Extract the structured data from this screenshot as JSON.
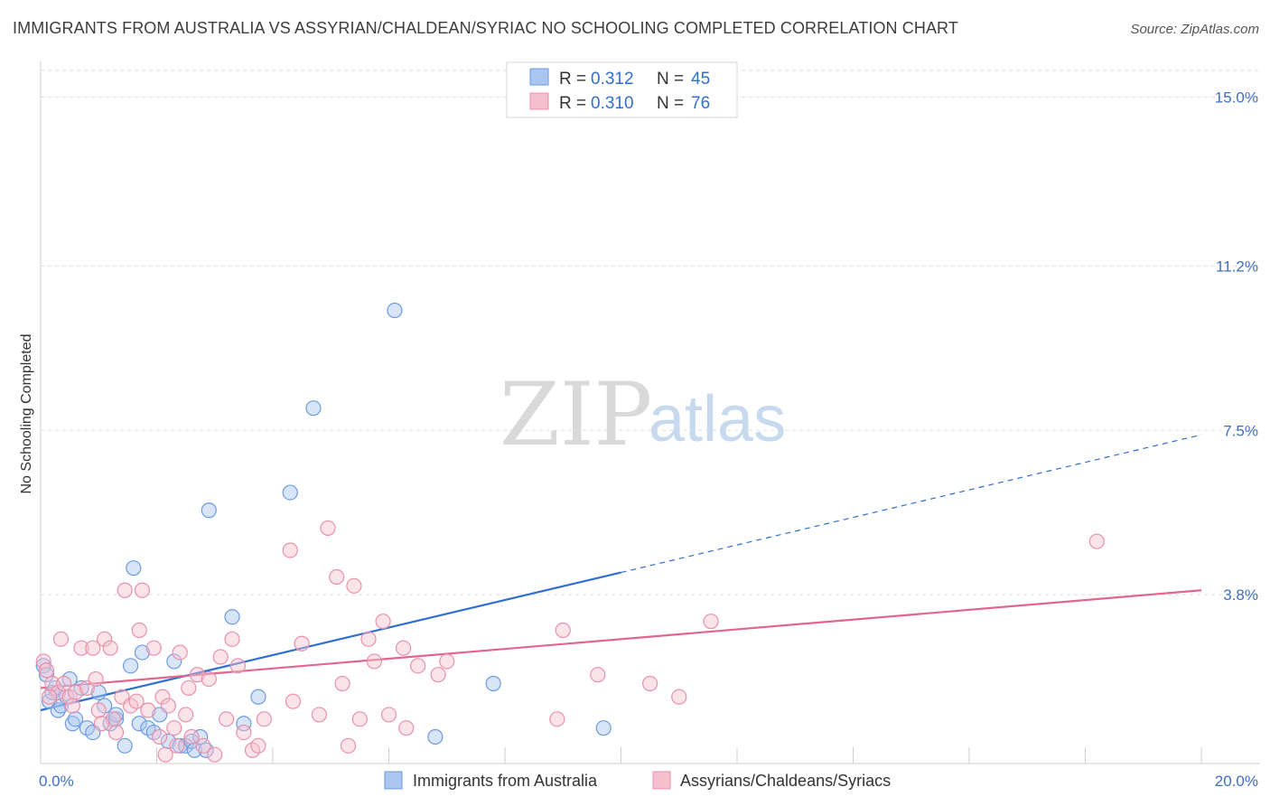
{
  "title": "IMMIGRANTS FROM AUSTRALIA VS ASSYRIAN/CHALDEAN/SYRIAC NO SCHOOLING COMPLETED CORRELATION CHART",
  "source": "Source: ZipAtlas.com",
  "watermark": {
    "part1": "ZIP",
    "part2": "atlas"
  },
  "colors": {
    "blue_fill": "#a9c6f0",
    "blue_stroke": "#6d9be0",
    "blue_line": "#2f6fd1",
    "pink_fill": "#f6c0d0",
    "pink_stroke": "#e890aa",
    "pink_line": "#e0668f",
    "grid": "#dddddd",
    "tick": "#3f6fc4"
  },
  "legend": {
    "rows": [
      {
        "r_label": "R =",
        "r_value": "0.312",
        "n_label": "N =",
        "n_value": "45"
      },
      {
        "r_label": "R =",
        "r_value": "0.310",
        "n_label": "N =",
        "n_value": "76"
      }
    ]
  },
  "chart_data": {
    "type": "scatter",
    "ylabel": "No Schooling Completed",
    "xlim": [
      0,
      20
    ],
    "ylim": [
      0,
      15.6
    ],
    "y_ticks": [
      {
        "value": 15.0,
        "label": "15.0%"
      },
      {
        "value": 11.2,
        "label": "11.2%"
      },
      {
        "value": 7.5,
        "label": "7.5%"
      },
      {
        "value": 3.8,
        "label": "3.8%"
      }
    ],
    "x_ticks": [
      {
        "value": 0,
        "label": "0.0%"
      },
      {
        "value": 20,
        "label": "20.0%"
      }
    ],
    "series": [
      {
        "name": "Immigrants from Australia",
        "color": "blue",
        "trend": {
          "x0": 0,
          "y0": 1.2,
          "x1": 10,
          "y1": 4.3,
          "dash_to_x": 20,
          "dash_to_y": 7.4
        },
        "points": [
          [
            0.05,
            2.2
          ],
          [
            0.1,
            2.0
          ],
          [
            0.15,
            1.4
          ],
          [
            0.2,
            1.6
          ],
          [
            0.3,
            1.2
          ],
          [
            0.35,
            1.3
          ],
          [
            0.45,
            1.5
          ],
          [
            0.5,
            1.9
          ],
          [
            0.55,
            0.9
          ],
          [
            0.6,
            1.0
          ],
          [
            0.7,
            1.7
          ],
          [
            0.8,
            0.8
          ],
          [
            0.9,
            0.7
          ],
          [
            1.0,
            1.6
          ],
          [
            1.1,
            1.3
          ],
          [
            1.2,
            0.9
          ],
          [
            1.3,
            1.0
          ],
          [
            1.45,
            0.4
          ],
          [
            1.55,
            2.2
          ],
          [
            1.6,
            4.4
          ],
          [
            1.7,
            0.9
          ],
          [
            1.75,
            2.5
          ],
          [
            1.85,
            0.8
          ],
          [
            1.95,
            0.7
          ],
          [
            2.05,
            1.1
          ],
          [
            2.2,
            0.5
          ],
          [
            2.3,
            2.3
          ],
          [
            2.4,
            0.4
          ],
          [
            2.5,
            0.4
          ],
          [
            2.6,
            0.5
          ],
          [
            2.65,
            0.3
          ],
          [
            2.75,
            0.6
          ],
          [
            2.85,
            0.3
          ],
          [
            2.9,
            5.7
          ],
          [
            3.3,
            3.3
          ],
          [
            3.5,
            0.9
          ],
          [
            3.75,
            1.5
          ],
          [
            4.3,
            6.1
          ],
          [
            4.7,
            8.0
          ],
          [
            6.1,
            10.2
          ],
          [
            6.8,
            0.6
          ],
          [
            7.8,
            1.8
          ],
          [
            9.7,
            0.8
          ],
          [
            0.25,
            1.7
          ],
          [
            1.3,
            1.1
          ]
        ]
      },
      {
        "name": "Assyrians/Chaldeans/Syriacs",
        "color": "pink",
        "trend": {
          "x0": 0,
          "y0": 1.7,
          "x1": 20,
          "y1": 3.9
        },
        "points": [
          [
            0.05,
            2.3
          ],
          [
            0.1,
            2.1
          ],
          [
            0.2,
            1.8
          ],
          [
            0.3,
            1.6
          ],
          [
            0.35,
            2.8
          ],
          [
            0.4,
            1.8
          ],
          [
            0.5,
            1.5
          ],
          [
            0.6,
            1.6
          ],
          [
            0.7,
            2.6
          ],
          [
            0.8,
            1.7
          ],
          [
            0.9,
            2.6
          ],
          [
            0.95,
            1.9
          ],
          [
            1.0,
            1.2
          ],
          [
            1.1,
            2.8
          ],
          [
            1.2,
            2.6
          ],
          [
            1.25,
            1.0
          ],
          [
            1.3,
            0.7
          ],
          [
            1.4,
            1.5
          ],
          [
            1.45,
            3.9
          ],
          [
            1.55,
            1.3
          ],
          [
            1.65,
            1.4
          ],
          [
            1.7,
            3.0
          ],
          [
            1.75,
            3.9
          ],
          [
            1.85,
            1.2
          ],
          [
            1.95,
            2.6
          ],
          [
            2.05,
            0.6
          ],
          [
            2.1,
            1.5
          ],
          [
            2.15,
            0.2
          ],
          [
            2.2,
            1.3
          ],
          [
            2.3,
            0.8
          ],
          [
            2.35,
            0.4
          ],
          [
            2.4,
            2.5
          ],
          [
            2.5,
            1.1
          ],
          [
            2.6,
            0.6
          ],
          [
            2.7,
            2.0
          ],
          [
            2.8,
            0.4
          ],
          [
            2.9,
            1.9
          ],
          [
            3.0,
            0.2
          ],
          [
            3.1,
            2.4
          ],
          [
            3.2,
            1.0
          ],
          [
            3.3,
            2.8
          ],
          [
            3.4,
            2.2
          ],
          [
            3.5,
            0.7
          ],
          [
            3.65,
            0.3
          ],
          [
            3.75,
            0.4
          ],
          [
            3.85,
            1.0
          ],
          [
            4.3,
            4.8
          ],
          [
            4.35,
            1.4
          ],
          [
            4.5,
            2.7
          ],
          [
            4.8,
            1.1
          ],
          [
            4.95,
            5.3
          ],
          [
            5.1,
            4.2
          ],
          [
            5.2,
            1.8
          ],
          [
            5.3,
            0.4
          ],
          [
            5.4,
            4.0
          ],
          [
            5.5,
            1.0
          ],
          [
            5.65,
            2.8
          ],
          [
            5.75,
            2.3
          ],
          [
            5.9,
            3.2
          ],
          [
            6.0,
            1.1
          ],
          [
            6.25,
            2.6
          ],
          [
            6.3,
            0.8
          ],
          [
            6.5,
            2.2
          ],
          [
            6.85,
            2.0
          ],
          [
            7.0,
            2.3
          ],
          [
            8.9,
            1.0
          ],
          [
            9.0,
            3.0
          ],
          [
            9.6,
            2.0
          ],
          [
            10.5,
            1.8
          ],
          [
            11.0,
            1.5
          ],
          [
            11.55,
            3.2
          ],
          [
            18.2,
            5.0
          ],
          [
            0.15,
            1.5
          ],
          [
            0.55,
            1.3
          ],
          [
            1.05,
            0.9
          ],
          [
            2.55,
            1.7
          ]
        ]
      }
    ]
  }
}
